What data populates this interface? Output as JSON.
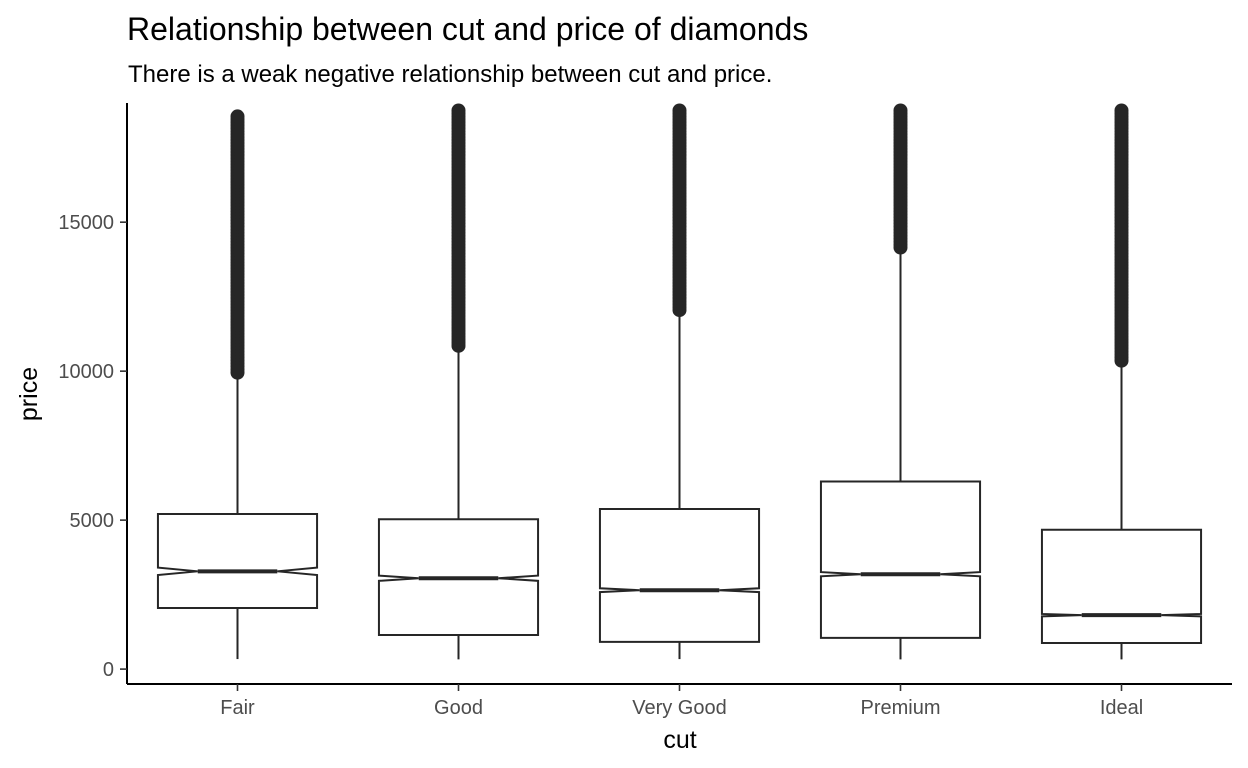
{
  "chart_data": {
    "type": "boxplot",
    "title": "Relationship between cut and price of diamonds",
    "subtitle": "There is a weak negative relationship between cut and price.",
    "xlabel": "cut",
    "ylabel": "price",
    "ylim": [
      -500,
      19000
    ],
    "yticks": [
      0,
      5000,
      10000,
      15000
    ],
    "ytick_labels": [
      "0",
      "5000",
      "10000",
      "15000"
    ],
    "notched": true,
    "grid": false,
    "categories": [
      "Fair",
      "Good",
      "Very Good",
      "Premium",
      "Ideal"
    ],
    "boxes": [
      {
        "category": "Fair",
        "whisker_low": 337,
        "q1": 2050,
        "median": 3282,
        "q3": 5206,
        "whisker_high": 9950,
        "outliers_range": [
          9950,
          18574
        ]
      },
      {
        "category": "Good",
        "whisker_low": 327,
        "q1": 1145,
        "median": 3050,
        "q3": 5028,
        "whisker_high": 10850,
        "outliers_range": [
          10850,
          18788
        ]
      },
      {
        "category": "Very Good",
        "whisker_low": 336,
        "q1": 912,
        "median": 2648,
        "q3": 5373,
        "whisker_high": 12050,
        "outliers_range": [
          12050,
          18818
        ]
      },
      {
        "category": "Premium",
        "whisker_low": 326,
        "q1": 1046,
        "median": 3185,
        "q3": 6296,
        "whisker_high": 14150,
        "outliers_range": [
          14150,
          18823
        ]
      },
      {
        "category": "Ideal",
        "whisker_low": 326,
        "q1": 878,
        "median": 1810,
        "q3": 4678,
        "whisker_high": 10350,
        "outliers_range": [
          10350,
          18806
        ]
      }
    ],
    "colors": {
      "box_line": "#262626",
      "box_fill": "#ffffff",
      "outlier": "#262626",
      "axis": "#000000",
      "tick_text": "#4d4d4d"
    }
  }
}
